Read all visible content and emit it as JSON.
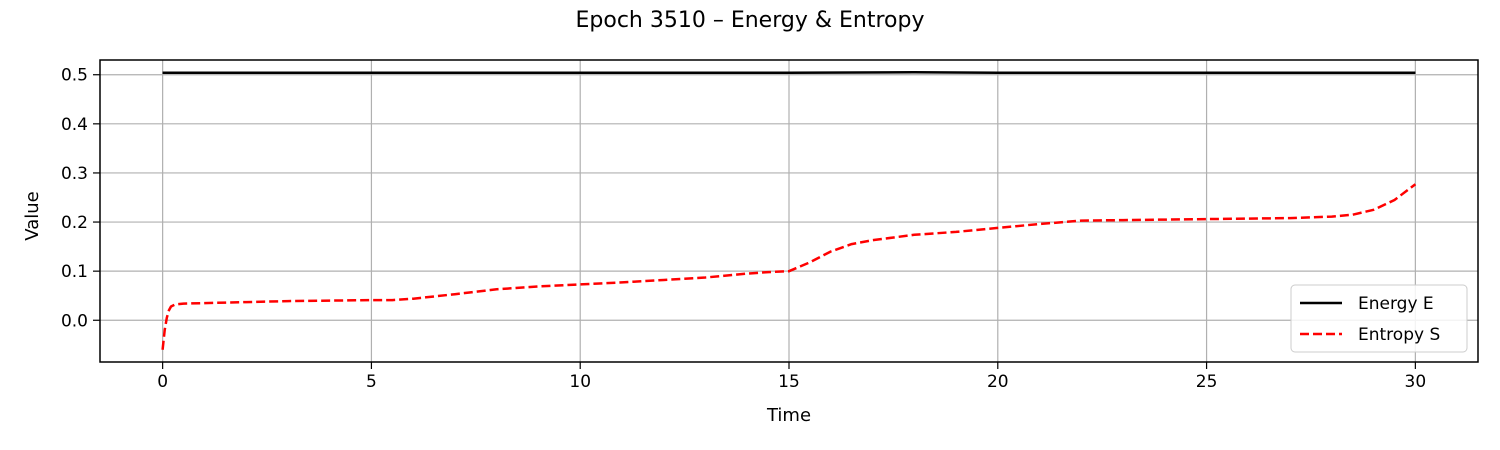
{
  "chart_data": {
    "type": "line",
    "title": "Epoch 3510 – Energy & Entropy",
    "xlabel": "Time",
    "ylabel": "Value",
    "xlim": [
      -1.5,
      31.5
    ],
    "ylim": [
      -0.085,
      0.53
    ],
    "xticks": [
      0,
      5,
      10,
      15,
      20,
      25,
      30
    ],
    "yticks": [
      0.0,
      0.1,
      0.2,
      0.3,
      0.4,
      0.5
    ],
    "grid": true,
    "legend": "lower-right",
    "series": [
      {
        "name": "Energy E",
        "color": "#000000",
        "style": "solid",
        "x": [
          0,
          5,
          10,
          15,
          18,
          20,
          25,
          30
        ],
        "y": [
          0.504,
          0.504,
          0.504,
          0.504,
          0.505,
          0.504,
          0.504,
          0.504
        ]
      },
      {
        "name": "Entropy S",
        "color": "#ff0000",
        "style": "dashed",
        "x": [
          0,
          0.05,
          0.1,
          0.15,
          0.2,
          0.3,
          0.5,
          1,
          2,
          3,
          4,
          5,
          5.5,
          6,
          7,
          8,
          9,
          10,
          11,
          12,
          13,
          14,
          14.5,
          15,
          15.5,
          16,
          16.5,
          17,
          18,
          19,
          20,
          21,
          22,
          23,
          24,
          25,
          26,
          27,
          28,
          28.5,
          29,
          29.5,
          30
        ],
        "y": [
          -0.06,
          -0.02,
          0.005,
          0.02,
          0.028,
          0.032,
          0.034,
          0.035,
          0.037,
          0.039,
          0.04,
          0.041,
          0.041,
          0.044,
          0.053,
          0.063,
          0.069,
          0.073,
          0.077,
          0.082,
          0.087,
          0.095,
          0.098,
          0.1,
          0.118,
          0.14,
          0.155,
          0.163,
          0.174,
          0.18,
          0.188,
          0.196,
          0.203,
          0.204,
          0.205,
          0.206,
          0.207,
          0.208,
          0.211,
          0.215,
          0.225,
          0.245,
          0.277
        ]
      }
    ]
  }
}
